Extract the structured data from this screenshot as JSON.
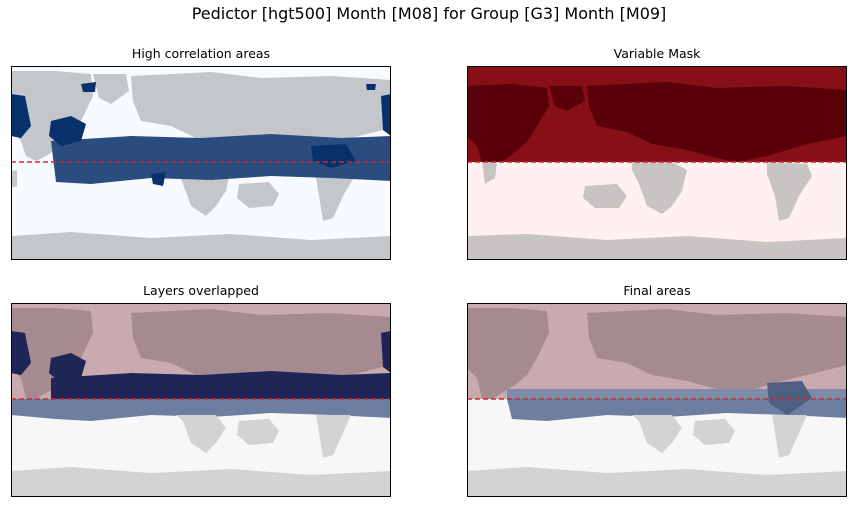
{
  "figure": {
    "suptitle": "Pedictor [hgt500] Month [M08] for Group [G3] Month [M09]"
  },
  "panels": [
    {
      "id": "high-correlation",
      "title": "High correlation areas"
    },
    {
      "id": "variable-mask",
      "title": "Variable Mask"
    },
    {
      "id": "layers-overlapped",
      "title": "Layers overlapped"
    },
    {
      "id": "final-areas",
      "title": "Final areas"
    }
  ],
  "chart_data": [
    {
      "type": "heatmap",
      "title": "High correlation areas",
      "layers": [
        "land",
        "correlation"
      ],
      "colors": {
        "ocean": "#f7fbff",
        "land": "#c3c6ca",
        "correlation": "#08306b",
        "correlation_weak": "#2b4c7e",
        "divider": "#d62728"
      },
      "divider_style": "dashed",
      "xticks": [],
      "yticks": []
    },
    {
      "type": "heatmap",
      "title": "Variable Mask",
      "layers": [
        "land",
        "mask"
      ],
      "colors": {
        "mask_on": "#870f18",
        "mask_on_land": "#5a0008",
        "mask_off": "#fff1ef",
        "land": "#c8c4c4",
        "divider": "#d62728"
      },
      "divider_style": "dashed",
      "xticks": [],
      "yticks": []
    },
    {
      "type": "heatmap",
      "title": "Layers overlapped",
      "layers": [
        "land",
        "correlation",
        "mask"
      ],
      "colors": {
        "mask_tint": "#c9aaaf",
        "correlation_overlay": "#1f2554",
        "correlation_below": "#6d7ea0",
        "land": "#d3d3d3",
        "background": "#f7f7f7",
        "divider": "#d62728"
      },
      "divider_style": "dashed",
      "xticks": [],
      "yticks": []
    },
    {
      "type": "heatmap",
      "title": "Final areas",
      "layers": [
        "land",
        "mask",
        "final"
      ],
      "colors": {
        "mask_tint": "#c9aaaf",
        "final_region": "#6d7ea0",
        "land": "#d3d3d3",
        "background": "#f7f7f7",
        "divider": "#d62728"
      },
      "divider_style": "dashed",
      "xticks": [],
      "yticks": []
    }
  ]
}
